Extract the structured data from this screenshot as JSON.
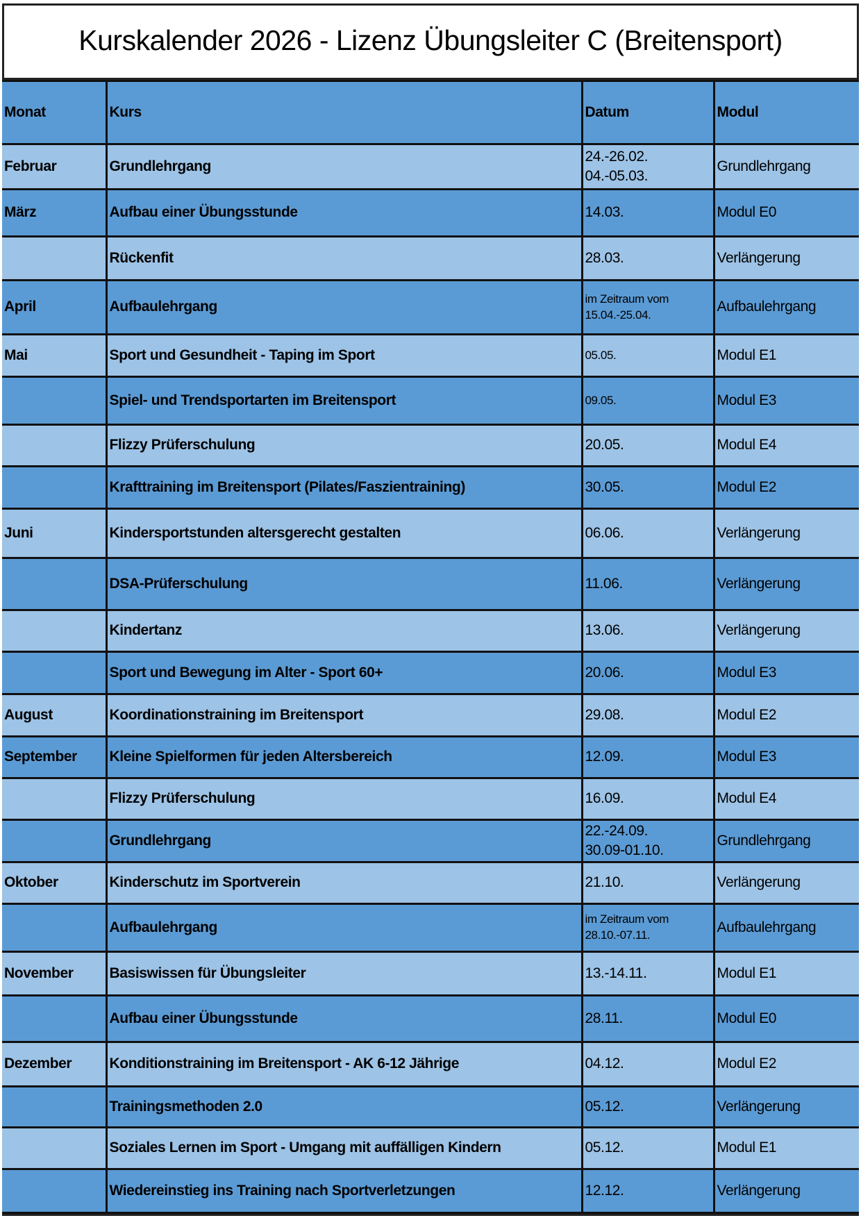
{
  "title": "Kurskalender 2026 - Lizenz Übungsleiter C (Breitensport)",
  "colors": {
    "header": "#5b9bd5",
    "row_dark": "#5b9bd5",
    "row_light": "#9dc3e6"
  },
  "columns": [
    "Monat",
    "Kurs",
    "Datum",
    "Modul"
  ],
  "rows": [
    {
      "monat": "Februar",
      "kurs": "Grundlehrgang",
      "datum": [
        "24.-26.02.",
        "04.-05.03."
      ],
      "modul": "Grundlehrgang"
    },
    {
      "monat": "März",
      "kurs": "Aufbau einer Übungsstunde",
      "datum": [
        "14.03."
      ],
      "modul": "Modul E0"
    },
    {
      "monat": "",
      "kurs": "Rückenfit",
      "datum": [
        "28.03."
      ],
      "modul": "Verlängerung"
    },
    {
      "monat": "April",
      "kurs": "Aufbaulehrgang",
      "datum": [
        "im Zeitraum vom",
        "15.04.-25.04."
      ],
      "modul": "Aufbaulehrgang"
    },
    {
      "monat": "Mai",
      "kurs": "Sport und Gesundheit - Taping im Sport",
      "datum": [
        "05.05."
      ],
      "modul": "Modul E1"
    },
    {
      "monat": "",
      "kurs": "Spiel- und Trendsportarten im Breitensport",
      "datum": [
        "09.05."
      ],
      "modul": "Modul E3"
    },
    {
      "monat": "",
      "kurs": "Flizzy Prüferschulung",
      "datum": [
        "20.05."
      ],
      "modul": "Modul E4"
    },
    {
      "monat": "",
      "kurs": "Krafttraining im Breitensport (Pilates/Faszientraining)",
      "datum": [
        "30.05."
      ],
      "modul": "Modul E2"
    },
    {
      "monat": "Juni",
      "kurs": "Kindersportstunden altersgerecht gestalten",
      "datum": [
        "06.06."
      ],
      "modul": "Verlängerung"
    },
    {
      "monat": "",
      "kurs": "DSA-Prüferschulung",
      "datum": [
        "11.06."
      ],
      "modul": "Verlängerung"
    },
    {
      "monat": "",
      "kurs": "Kindertanz",
      "datum": [
        "13.06."
      ],
      "modul": "Verlängerung"
    },
    {
      "monat": "",
      "kurs": "Sport und Bewegung im Alter - Sport 60+",
      "datum": [
        "20.06."
      ],
      "modul": "Modul E3"
    },
    {
      "monat": "August",
      "kurs": "Koordinationstraining im Breitensport",
      "datum": [
        "29.08."
      ],
      "modul": "Modul E2"
    },
    {
      "monat": "September",
      "kurs": "Kleine Spielformen für jeden Altersbereich",
      "datum": [
        "12.09."
      ],
      "modul": "Modul E3"
    },
    {
      "monat": "",
      "kurs": "Flizzy Prüferschulung",
      "datum": [
        "16.09."
      ],
      "modul": "Modul E4"
    },
    {
      "monat": "",
      "kurs": "Grundlehrgang",
      "datum": [
        "22.-24.09.",
        "30.09-01.10."
      ],
      "modul": "Grundlehrgang"
    },
    {
      "monat": "Oktober",
      "kurs": "Kinderschutz im Sportverein",
      "datum": [
        "21.10."
      ],
      "modul": "Verlängerung"
    },
    {
      "monat": "",
      "kurs": "Aufbaulehrgang",
      "datum": [
        "im Zeitraum vom",
        "28.10.-07.11."
      ],
      "modul": "Aufbaulehrgang"
    },
    {
      "monat": "November",
      "kurs": "Basiswissen für Übungsleiter",
      "datum": [
        "13.-14.11."
      ],
      "modul": "Modul E1"
    },
    {
      "monat": "",
      "kurs": "Aufbau einer Übungsstunde",
      "datum": [
        "28.11."
      ],
      "modul": "Modul E0"
    },
    {
      "monat": "Dezember",
      "kurs": "Konditionstraining im Breitensport - AK 6-12 Jährige",
      "datum": [
        "04.12."
      ],
      "modul": "Modul E2"
    },
    {
      "monat": "",
      "kurs": "Trainingsmethoden 2.0",
      "datum": [
        "05.12."
      ],
      "modul": "Verlängerung"
    },
    {
      "monat": "",
      "kurs": "Soziales Lernen im Sport - Umgang mit auffälligen Kindern",
      "datum": [
        "05.12."
      ],
      "modul": "Modul E1"
    },
    {
      "monat": "",
      "kurs": "Wiedereinstieg ins Training nach Sportverletzungen",
      "datum": [
        "12.12."
      ],
      "modul": "Verlängerung"
    }
  ]
}
